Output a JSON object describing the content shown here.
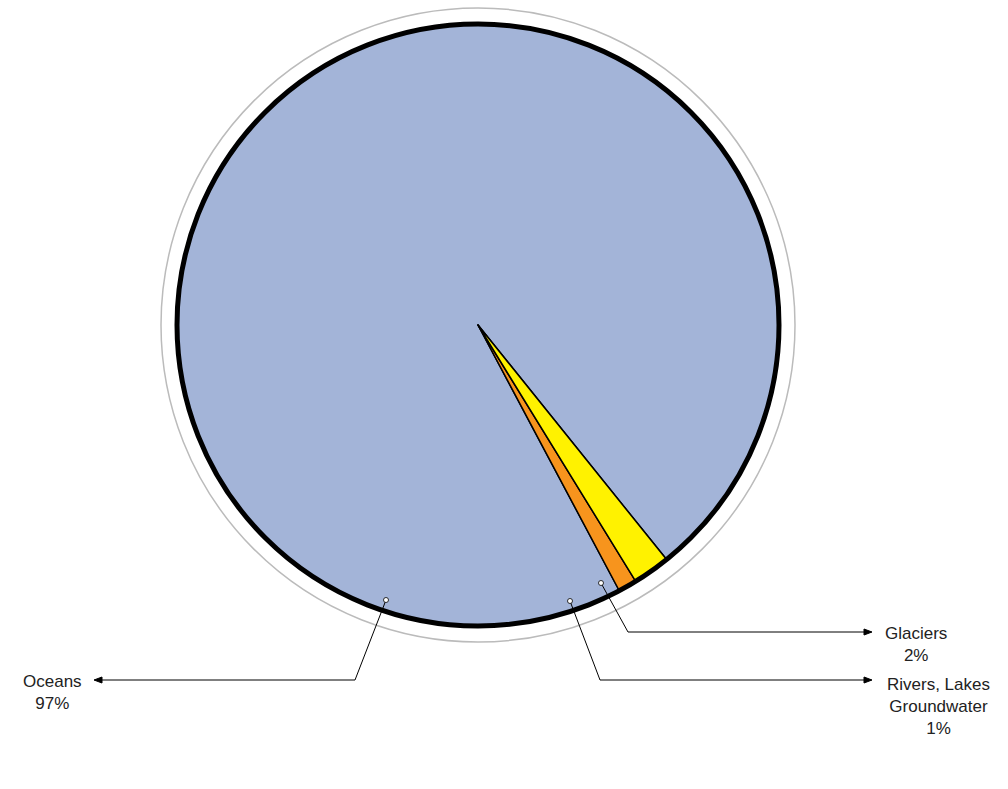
{
  "chart_data": {
    "type": "pie",
    "categories": [
      "Oceans",
      "Rivers, Lakes Groundwater",
      "Glaciers"
    ],
    "values": [
      97,
      1,
      2
    ],
    "value_labels": [
      "97%",
      "1%",
      "2%"
    ],
    "colors": [
      "#a3b4d8",
      "#f7941d",
      "#fff200"
    ],
    "data_labels": true
  }
}
